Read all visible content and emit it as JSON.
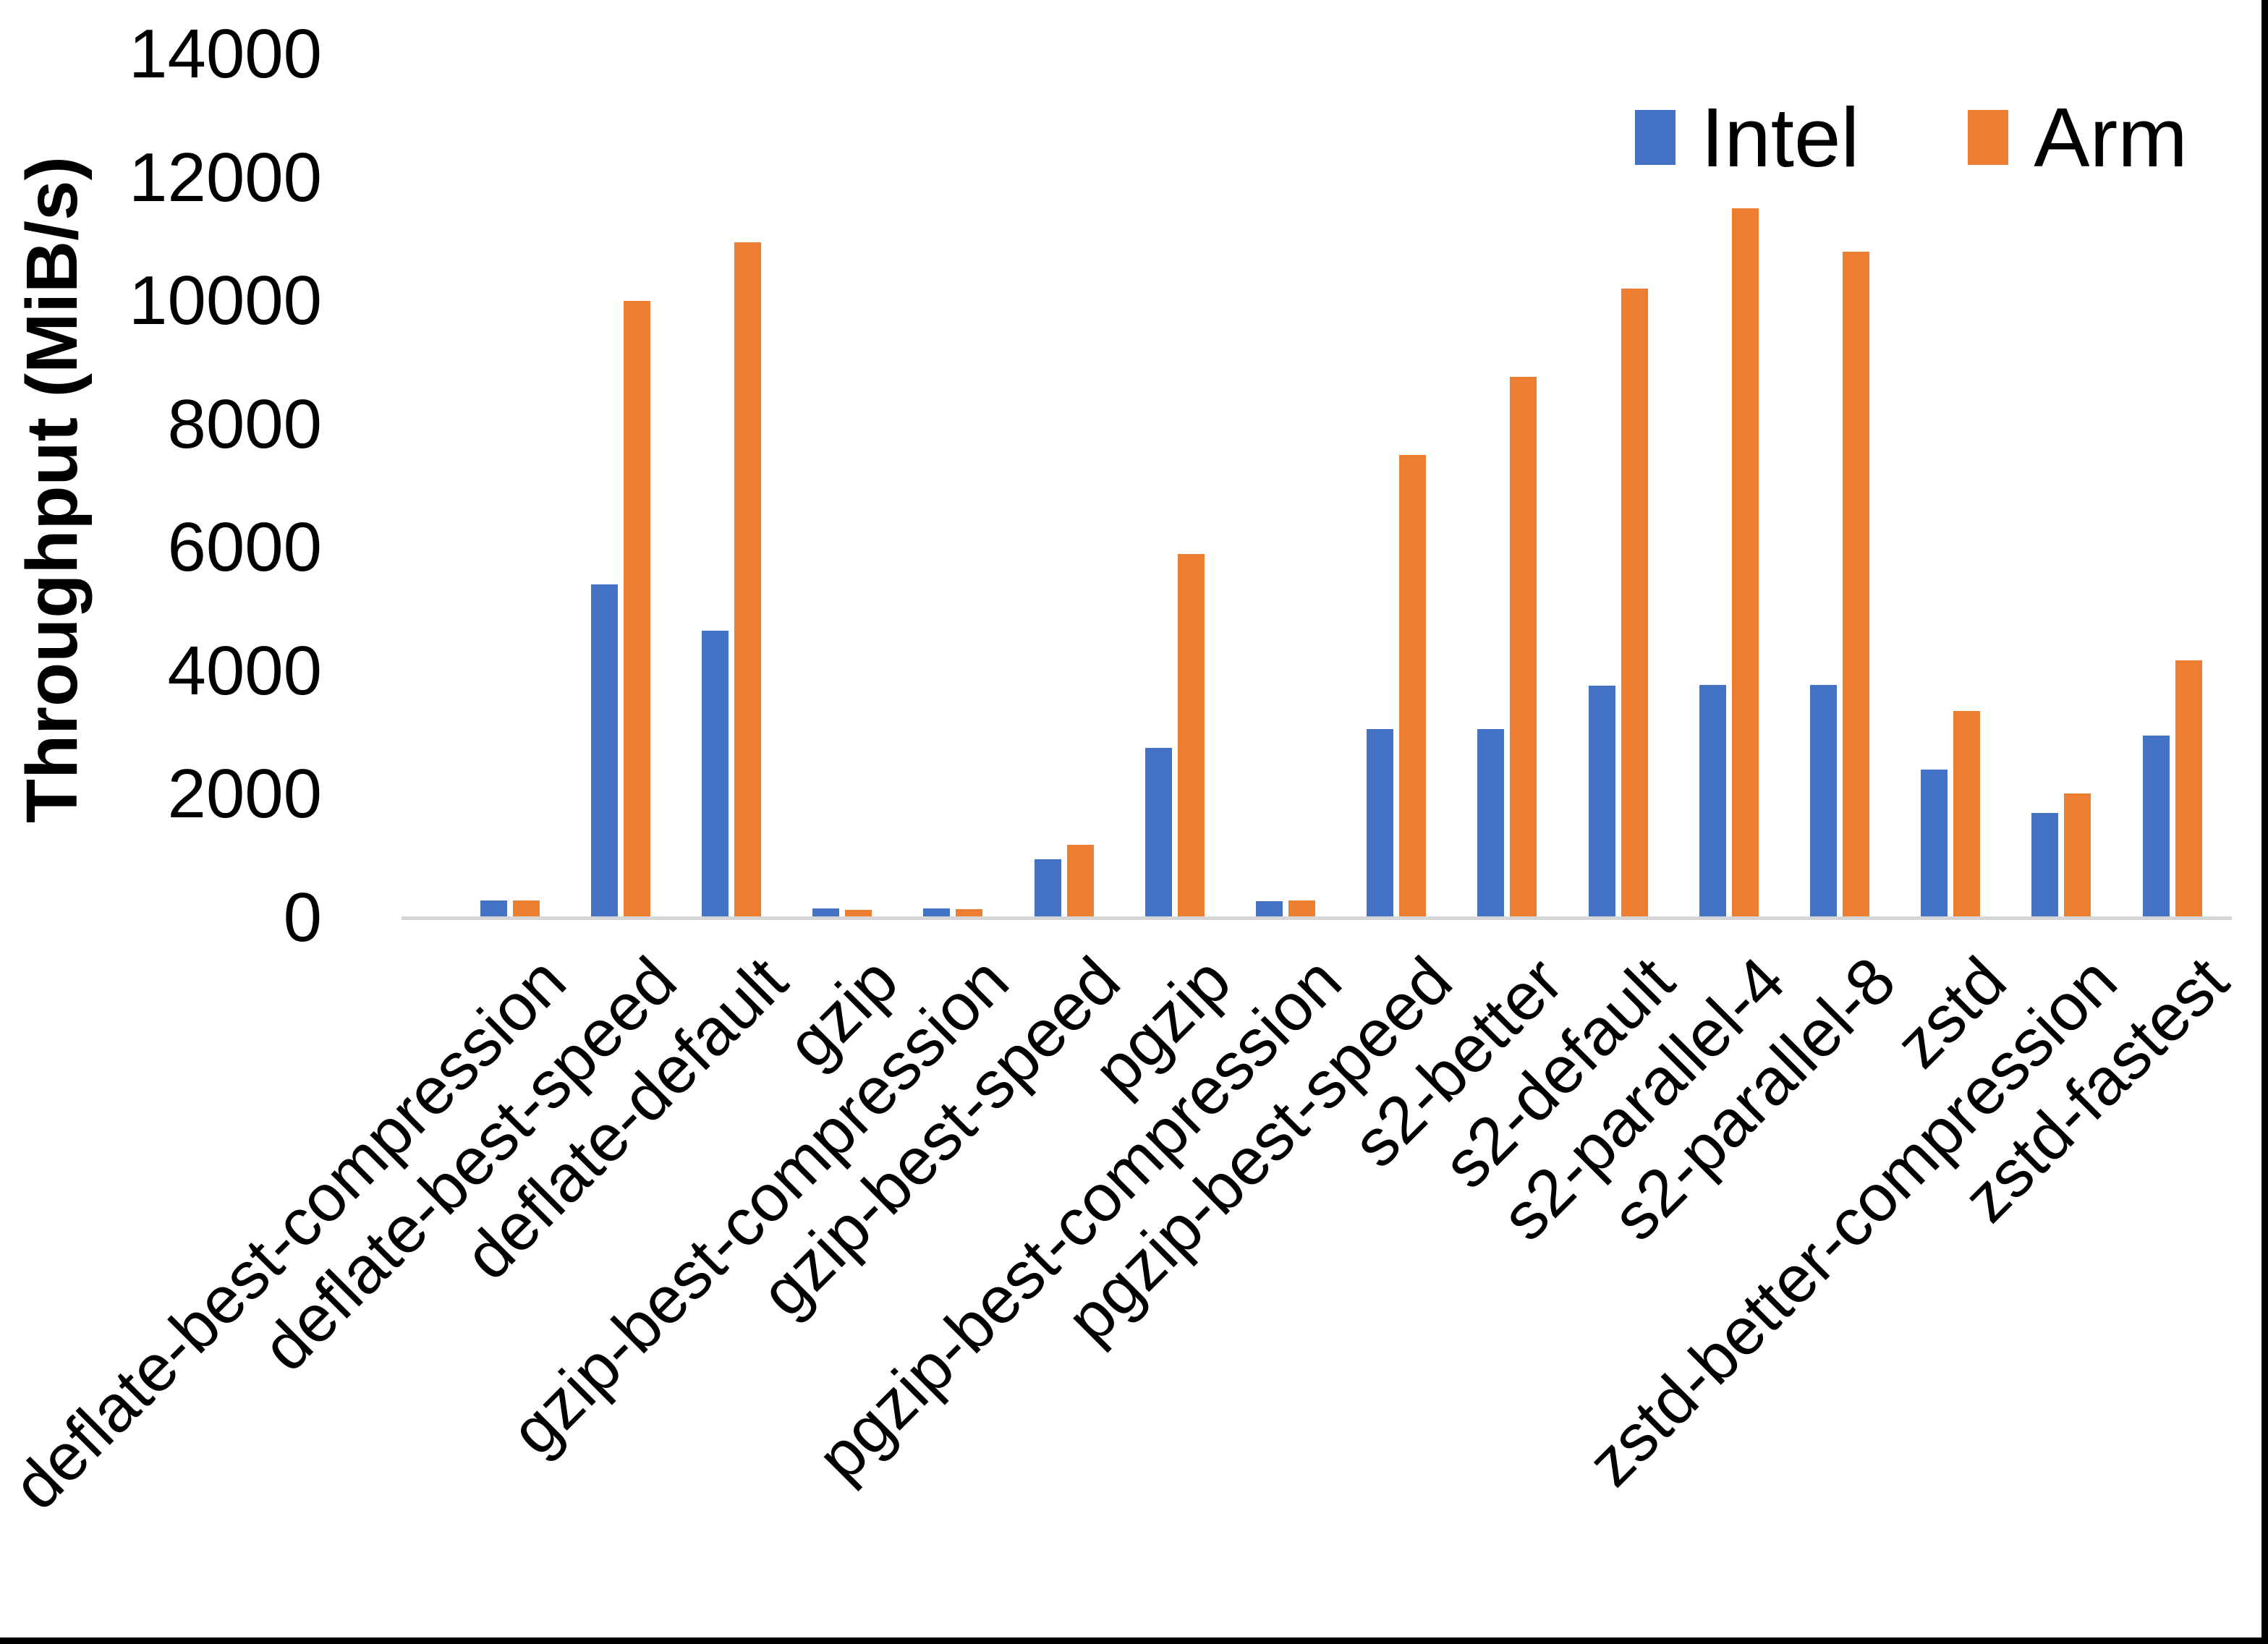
{
  "chart_data": {
    "type": "bar",
    "title": "",
    "xlabel": "",
    "ylabel": "Throughput (MiB/s)",
    "ylim": [
      0,
      14000
    ],
    "yticks": [
      0,
      2000,
      4000,
      6000,
      8000,
      10000,
      12000,
      14000
    ],
    "grid": false,
    "legend_position": "top-right",
    "categories": [
      "deflate-best-compression",
      "deflate-best-speed",
      "deflate-default",
      "gzip",
      "gzip-best-compression",
      "gzip-best-speed",
      "pgzip",
      "pgzip-best-compression",
      "pgzip-best-speed",
      "s2-better",
      "s2-default",
      "s2-parallel-4",
      "s2-parallel-8",
      "zstd",
      "zstd-better-compression",
      "zstd-fastest"
    ],
    "series": [
      {
        "name": "Intel",
        "color": "#4472C4",
        "values": [
          280,
          5400,
          4650,
          150,
          155,
          950,
          2750,
          270,
          3060,
          3060,
          3760,
          3780,
          3780,
          2400,
          1700,
          2950
        ]
      },
      {
        "name": "Arm",
        "color": "#ED7D31",
        "values": [
          280,
          10000,
          10950,
          130,
          135,
          1180,
          5900,
          285,
          7500,
          8770,
          10200,
          11500,
          10800,
          3350,
          2020,
          4180
        ]
      }
    ],
    "axis_line_color": "#d6d6d6",
    "text_color": "#000000"
  }
}
